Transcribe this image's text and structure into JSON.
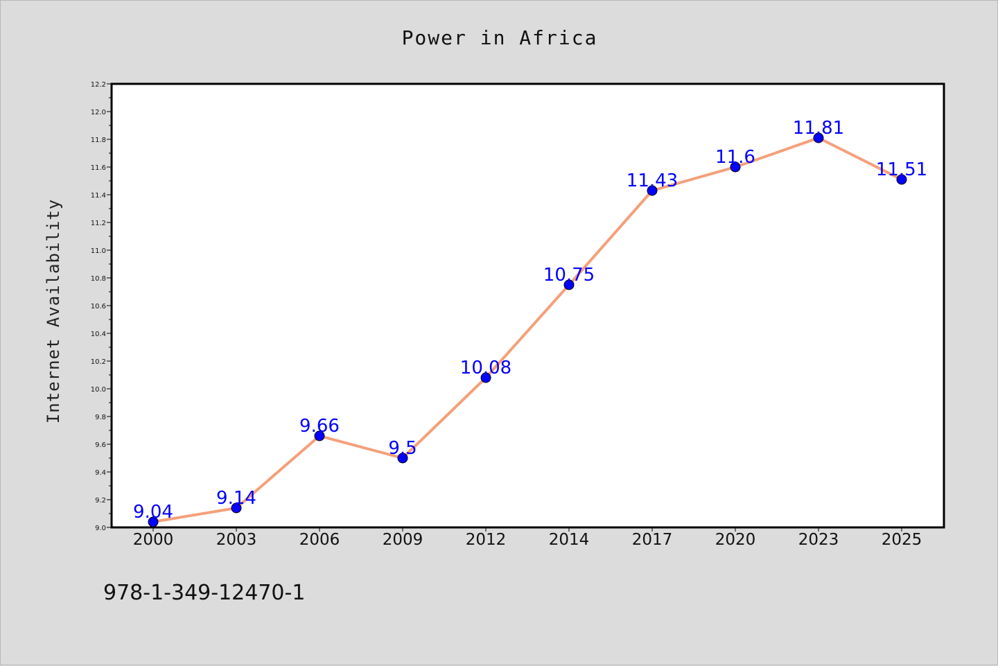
{
  "chart_data": {
    "type": "line",
    "title": "Power in Africa",
    "ylabel": "Internet Availability",
    "xlabel": "",
    "categories": [
      "2000",
      "2003",
      "2006",
      "2009",
      "2012",
      "2014",
      "2017",
      "2020",
      "2023",
      "2025"
    ],
    "series": [
      {
        "values": [
          9.04,
          9.14,
          9.66,
          9.5,
          10.08,
          10.75,
          11.43,
          11.6,
          11.81,
          11.51
        ],
        "labels": [
          "9.04",
          "9.14",
          "9.66",
          "9.5",
          "10.08",
          "10.75",
          "11.43",
          "11.6",
          "11.81",
          "11.51"
        ]
      }
    ],
    "ylim": [
      9.0,
      12.2
    ],
    "yticks": [
      "9.0",
      "9.2",
      "9.4",
      "9.6",
      "9.8",
      "10.0",
      "10.2",
      "10.4",
      "10.6",
      "10.8",
      "11.0",
      "11.2",
      "11.4",
      "11.6",
      "11.8",
      "12.0",
      "12.2"
    ],
    "grid": false,
    "legend": "none",
    "colors": {
      "line": "#f4a07a",
      "marker": "#0000ff",
      "data_label": "#0000ff",
      "background": "#dcdcdc",
      "plot_background": "#ffffff"
    }
  },
  "footer": {
    "isbn": "978-1-349-12470-1"
  }
}
